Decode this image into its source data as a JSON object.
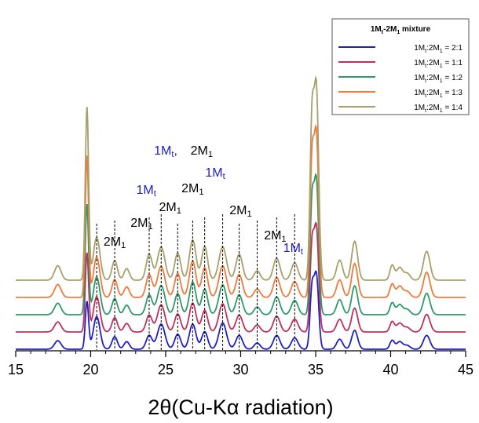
{
  "chart_data": {
    "type": "line",
    "xlabel": "2θ(Cu-Kα radiation)",
    "xlim": [
      15,
      45
    ],
    "x_ticks": [
      "15",
      "20",
      "25",
      "30",
      "35",
      "40",
      "45"
    ],
    "y_axis_visible": false,
    "legend": {
      "title_parts": [
        "1M",
        "t",
        "-2M",
        "1",
        " mixture"
      ],
      "placement": "top-right",
      "entries": [
        {
          "parts": [
            "1M",
            "t",
            ":2M",
            "1",
            " = 2:1"
          ]
        },
        {
          "parts": [
            "1M",
            "t",
            ":2M",
            "1",
            " = 1:1"
          ]
        },
        {
          "parts": [
            "1M",
            "t",
            ":2M",
            "1",
            " = 1:2"
          ]
        },
        {
          "parts": [
            "1M",
            "t",
            ":2M",
            "1",
            " = 1:3"
          ]
        },
        {
          "parts": [
            "1M",
            "t",
            ":2M",
            "1",
            " = 1:4"
          ]
        }
      ]
    },
    "series": [
      {
        "color": "#1f1fc8",
        "offset": 0
      },
      {
        "color": "#c0305a",
        "offset": 1
      },
      {
        "color": "#2e9a6a",
        "offset": 2
      },
      {
        "color": "#f07a3c",
        "offset": 3
      },
      {
        "color": "#a8a06a",
        "offset": 4
      }
    ],
    "peaks": [
      {
        "x": 17.8,
        "base": 0.35,
        "step": 0.06,
        "w": 0.22
      },
      {
        "x": 19.75,
        "base": 1.9,
        "step": 1.25,
        "w": 0.11
      },
      {
        "x": 20.4,
        "base": 1.3,
        "step": 0.1,
        "w": 0.22
      },
      {
        "x": 21.6,
        "base": 0.5,
        "step": 0.07,
        "w": 0.18
      },
      {
        "x": 22.4,
        "base": 0.3,
        "step": 0.04,
        "w": 0.18
      },
      {
        "x": 23.9,
        "base": 0.55,
        "step": 0.12,
        "w": 0.2
      },
      {
        "x": 24.7,
        "base": 1.0,
        "step": 0.08,
        "w": 0.25
      },
      {
        "x": 25.8,
        "base": 0.6,
        "step": 0.12,
        "w": 0.2
      },
      {
        "x": 26.8,
        "base": 1.0,
        "step": 0.15,
        "w": 0.22
      },
      {
        "x": 27.6,
        "base": 0.7,
        "step": 0.16,
        "w": 0.2
      },
      {
        "x": 28.8,
        "base": 1.05,
        "step": 0.07,
        "w": 0.25
      },
      {
        "x": 29.9,
        "base": 0.55,
        "step": 0.12,
        "w": 0.22
      },
      {
        "x": 31.1,
        "base": 0.25,
        "step": 0.03,
        "w": 0.2
      },
      {
        "x": 32.4,
        "base": 0.55,
        "step": 0.08,
        "w": 0.22
      },
      {
        "x": 33.6,
        "base": 0.45,
        "step": 0.06,
        "w": 0.22
      },
      {
        "x": 34.75,
        "base": 2.3,
        "step": 0.95,
        "w": 0.13
      },
      {
        "x": 35.05,
        "base": 2.9,
        "step": 1.15,
        "w": 0.15
      },
      {
        "x": 36.6,
        "base": 0.4,
        "step": 0.1,
        "w": 0.2
      },
      {
        "x": 37.6,
        "base": 0.75,
        "step": 0.2,
        "w": 0.2
      },
      {
        "x": 40.1,
        "base": 0.35,
        "step": 0.06,
        "w": 0.15
      },
      {
        "x": 40.6,
        "base": 0.3,
        "step": 0.05,
        "w": 0.2
      },
      {
        "x": 41.1,
        "base": 0.15,
        "step": 0.03,
        "w": 0.2
      },
      {
        "x": 42.4,
        "base": 0.55,
        "step": 0.15,
        "w": 0.22
      }
    ],
    "reflections": [
      20.4,
      21.6,
      23.9,
      24.7,
      25.8,
      26.8,
      27.6,
      28.8,
      29.9,
      31.1,
      32.4,
      33.6
    ],
    "annotations": [
      {
        "parts": [
          "2M",
          "1"
        ],
        "color": "#000000",
        "x": 21.6,
        "level": 0.62
      },
      {
        "parts": [
          "2M",
          "1"
        ],
        "color": "#000000",
        "x": 23.4,
        "level": 0.74
      },
      {
        "parts": [
          "1M",
          "t"
        ],
        "color": "#2020c0",
        "x": 23.7,
        "level": 0.95
      },
      {
        "parts": [
          "2M",
          "1"
        ],
        "color": "#000000",
        "x": 25.3,
        "level": 0.84
      },
      {
        "parts": [
          "1M",
          "t",
          ",",
          ""
        ],
        "color": "#2020c0",
        "x": 25.0,
        "level": 1.2
      },
      {
        "parts": [
          "2M",
          "1"
        ],
        "color": "#000000",
        "x": 27.4,
        "level": 1.2
      },
      {
        "parts": [
          "2M",
          "1"
        ],
        "color": "#000000",
        "x": 26.8,
        "level": 0.96
      },
      {
        "parts": [
          "1M",
          "t"
        ],
        "color": "#2020c0",
        "x": 28.3,
        "level": 1.06
      },
      {
        "parts": [
          "2M",
          "1"
        ],
        "color": "#000000",
        "x": 30.0,
        "level": 0.82
      },
      {
        "parts": [
          "2M",
          "1"
        ],
        "color": "#000000",
        "x": 32.3,
        "level": 0.66
      },
      {
        "parts": [
          "1M",
          "t"
        ],
        "color": "#2020c0",
        "x": 33.5,
        "level": 0.58
      }
    ]
  }
}
